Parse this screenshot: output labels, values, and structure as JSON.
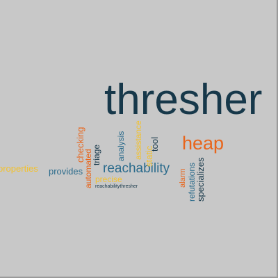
{
  "colors": {
    "background": "#c8c8c8",
    "dark_navy": "#17384a",
    "teal": "#2b6b8c",
    "orange": "#e8651b",
    "yellow": "#f2c12e"
  },
  "words": {
    "thresher": "thresher",
    "heap": "heap",
    "reachability": "reachability",
    "properties": "properties",
    "provides": "provides",
    "automated": "automated",
    "checking": "checking",
    "triage": "triage",
    "analysis": "analysis",
    "assistance": "assistance",
    "tool": "tool",
    "static": "static",
    "precise": "precise",
    "alarm": "alarm",
    "refutations": "refutations",
    "specializes": "specializes",
    "reachabilitythresher": "reachabilitythresher"
  }
}
